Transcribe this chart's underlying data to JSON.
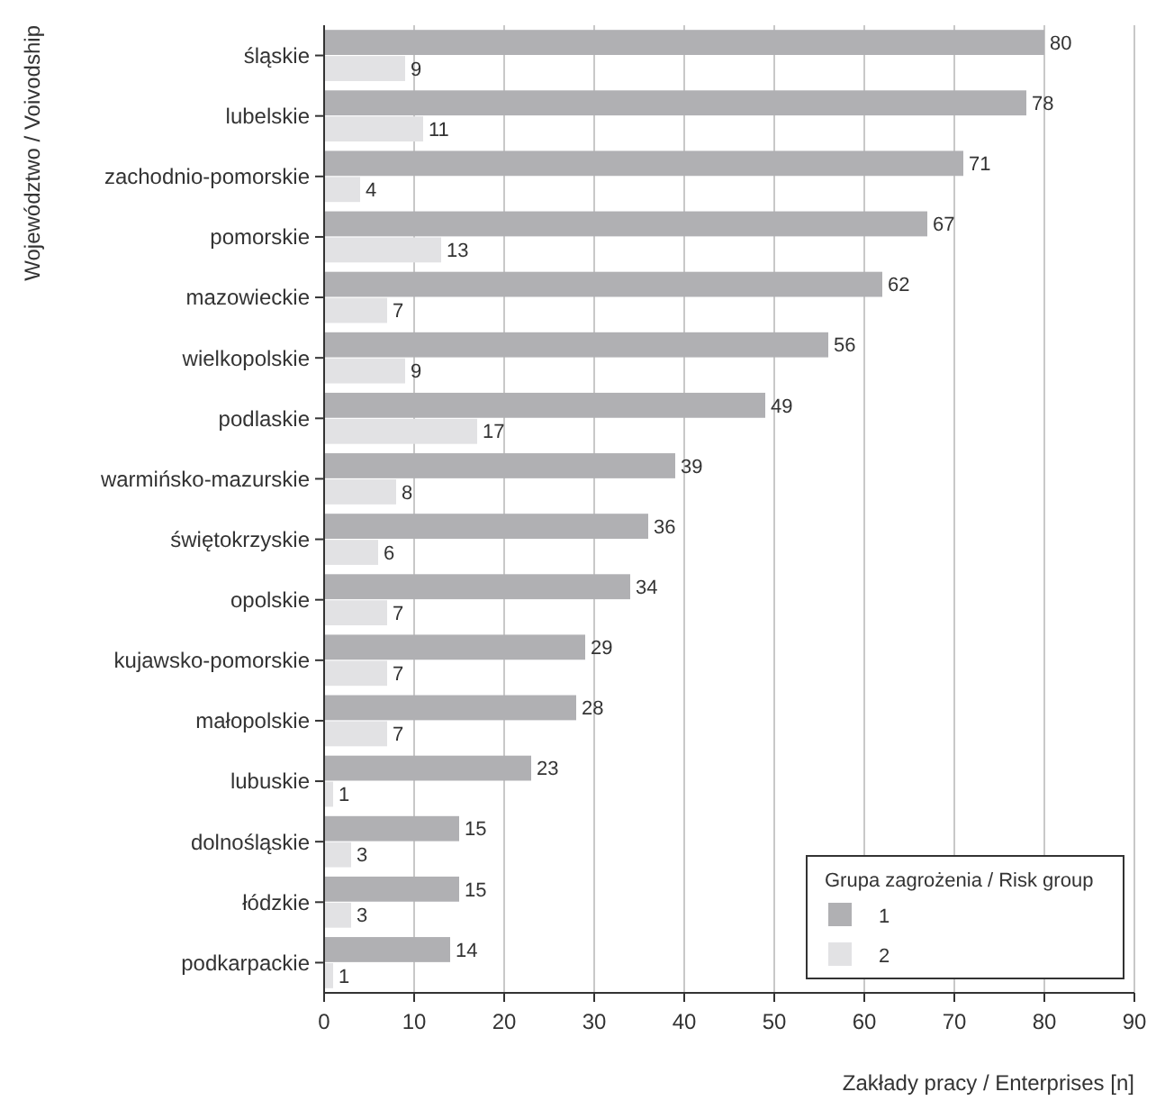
{
  "chart_data": {
    "type": "bar",
    "orientation": "horizontal",
    "ylabel": "Województwo / Voivodship",
    "xlabel": "Zakłady pracy / Enterprises [n]",
    "legend_title": "Grupa zagrożenia / Risk group",
    "categories": [
      "śląskie",
      "lubelskie",
      "zachodnio-pomorskie",
      "pomorskie",
      "mazowieckie",
      "wielkopolskie",
      "podlaskie",
      "warmińsko-mazurskie",
      "świętokrzyskie",
      "opolskie",
      "kujawsko-pomorskie",
      "małopolskie",
      "lubuskie",
      "dolnośląskie",
      "łódzkie",
      "podkarpackie"
    ],
    "series": [
      {
        "name": "1",
        "color": "#b0b0b3",
        "values": [
          80,
          78,
          71,
          67,
          62,
          56,
          49,
          39,
          36,
          34,
          29,
          28,
          23,
          15,
          15,
          14
        ]
      },
      {
        "name": "2",
        "color": "#e2e2e4",
        "values": [
          9,
          11,
          4,
          13,
          7,
          9,
          17,
          8,
          6,
          7,
          7,
          7,
          1,
          3,
          3,
          1
        ]
      }
    ],
    "xlim": [
      0,
      90
    ],
    "xticks": [
      0,
      10,
      20,
      30,
      40,
      50,
      60,
      70,
      80,
      90
    ],
    "grid": "x",
    "legend": "bottom right",
    "data_labels": true
  }
}
